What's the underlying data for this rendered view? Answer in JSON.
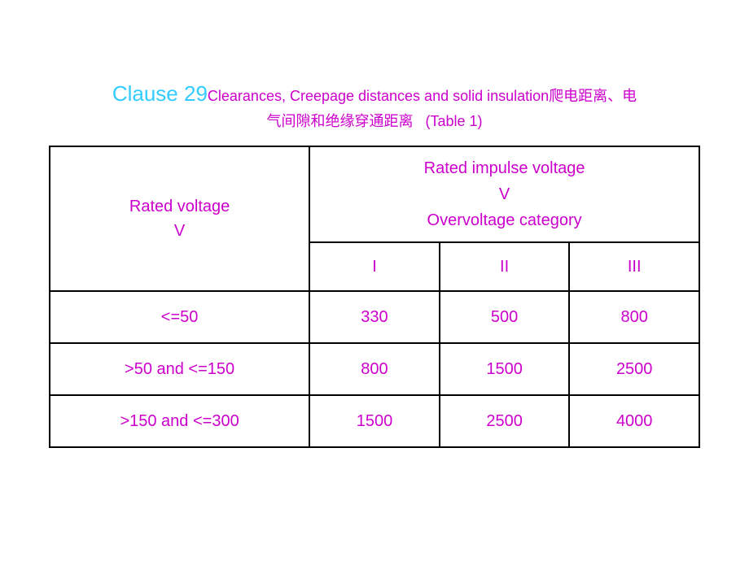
{
  "title": {
    "clause": "Clause 29",
    "heading_en": "Clearances, Creepage distances and solid insulation",
    "heading_cn1": "爬电距离、电",
    "heading_cn2": "气间隙和绝缘穿通距离",
    "table_ref": "(Table 1)"
  },
  "table": {
    "header_left_line1": "Rated voltage",
    "header_left_line2": "V",
    "header_right_line1": "Rated impulse voltage",
    "header_right_line2": "V",
    "header_right_line3": "Overvoltage category",
    "categories": [
      "I",
      "II",
      "III"
    ],
    "rows": [
      {
        "label": "<=50",
        "values": [
          "330",
          "500",
          "800"
        ]
      },
      {
        "label": ">50 and <=150",
        "values": [
          "800",
          "1500",
          "2500"
        ]
      },
      {
        "label": ">150 and <=300",
        "values": [
          "1500",
          "2500",
          "4000"
        ]
      }
    ],
    "colors": {
      "title_main": "#33ccff",
      "text": "#cc00cc",
      "border": "#000000",
      "background": "#ffffff"
    },
    "fonts": {
      "title_main_size": 26,
      "title_sub_size": 18,
      "cell_size": 20
    }
  }
}
